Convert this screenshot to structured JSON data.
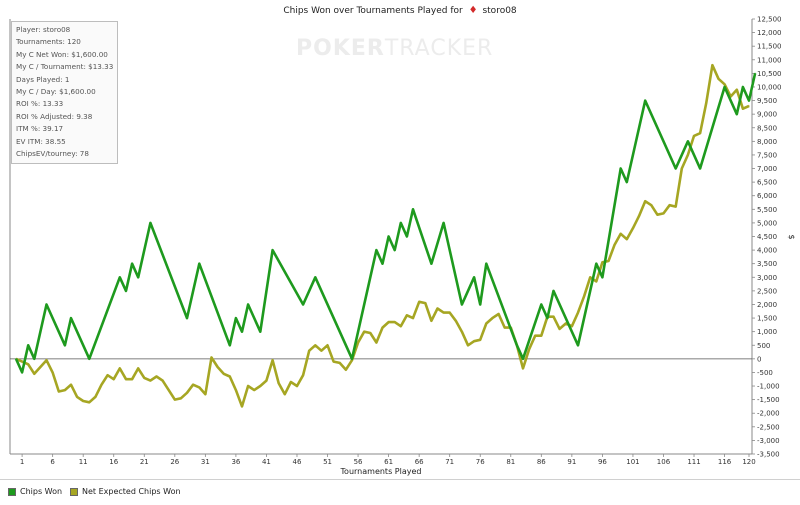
{
  "title": {
    "text": "Chips Won over Tournaments Played for",
    "suit_icon": "diamond-suit-icon",
    "suit_glyph": "♦",
    "player": "storo08"
  },
  "watermark": {
    "text_bold": "POKER",
    "text_light": "TRACKER"
  },
  "stats": [
    "Player: storo08",
    "Tournaments: 120",
    "My C Net Won: $1,600.00",
    "My C / Tournament: $13.33",
    "Days Played: 1",
    "My C / Day: $1,600.00",
    "ROI %: 13.33",
    "ROI % Adjusted: 9.38",
    "ITM %: 39.17",
    "EV ITM: 38.55",
    "ChipsEV/tourney: 78"
  ],
  "legend": [
    {
      "label": "Chips Won",
      "color": "#1e9a1e"
    },
    {
      "label": "Net Expected Chips Won",
      "color": "#a6a623"
    }
  ],
  "chart_data": {
    "type": "line",
    "title": "Chips Won over Tournaments Played for storo08",
    "xlabel": "Tournaments Played",
    "ylabel": "$",
    "xlim": [
      0,
      120
    ],
    "ylim": [
      -3500,
      12500
    ],
    "x_ticks": [
      1,
      6,
      11,
      16,
      21,
      26,
      31,
      36,
      41,
      46,
      51,
      56,
      61,
      66,
      71,
      76,
      81,
      86,
      91,
      96,
      101,
      106,
      111,
      116,
      120
    ],
    "y_ticks": [
      -3500,
      -3000,
      -2500,
      -2000,
      -1500,
      -1000,
      -500,
      0,
      500,
      1000,
      1500,
      2000,
      2500,
      3000,
      3500,
      4000,
      4500,
      5000,
      5500,
      6000,
      6500,
      7000,
      7500,
      8000,
      8500,
      9000,
      9500,
      10000,
      10500,
      11000,
      11500,
      12000,
      12500
    ],
    "y_tick_labels": [
      "-3,500",
      "-3,000",
      "-2,500",
      "-2,000",
      "-1,500",
      "-1,000",
      "-500",
      "0",
      "500",
      "1,000",
      "1,500",
      "2,000",
      "2,500",
      "3,000",
      "3,500",
      "4,000",
      "4,500",
      "5,000",
      "5,500",
      "6,000",
      "6,500",
      "7,000",
      "7,500",
      "8,000",
      "8,500",
      "9,000",
      "9,500",
      "10,000",
      "10,500",
      "11,000",
      "11,500",
      "12,000",
      "12,500"
    ],
    "grid": false,
    "zero_line": true,
    "legend_position": "bottom",
    "series": [
      {
        "name": "Chips Won",
        "color": "#1e9a1e",
        "points": [
          [
            0,
            0
          ],
          [
            1,
            -500
          ],
          [
            2,
            500
          ],
          [
            3,
            0
          ],
          [
            5,
            2000
          ],
          [
            8,
            500
          ],
          [
            9,
            1500
          ],
          [
            12,
            0
          ],
          [
            17,
            3000
          ],
          [
            18,
            2500
          ],
          [
            19,
            3500
          ],
          [
            20,
            3000
          ],
          [
            22,
            5000
          ],
          [
            28,
            1500
          ],
          [
            30,
            3500
          ],
          [
            35,
            500
          ],
          [
            36,
            1500
          ],
          [
            37,
            1000
          ],
          [
            38,
            2000
          ],
          [
            40,
            1000
          ],
          [
            42,
            4000
          ],
          [
            47,
            2000
          ],
          [
            49,
            3000
          ],
          [
            55,
            0
          ],
          [
            59,
            4000
          ],
          [
            60,
            3500
          ],
          [
            61,
            4500
          ],
          [
            62,
            4000
          ],
          [
            63,
            5000
          ],
          [
            64,
            4500
          ],
          [
            65,
            5500
          ],
          [
            68,
            3500
          ],
          [
            70,
            5000
          ],
          [
            73,
            2000
          ],
          [
            75,
            3000
          ],
          [
            76,
            2000
          ],
          [
            77,
            3500
          ],
          [
            82,
            500
          ],
          [
            83,
            0
          ],
          [
            86,
            2000
          ],
          [
            87,
            1500
          ],
          [
            88,
            2500
          ],
          [
            92,
            500
          ],
          [
            95,
            3500
          ],
          [
            96,
            3000
          ],
          [
            99,
            7000
          ],
          [
            100,
            6500
          ],
          [
            103,
            9500
          ],
          [
            108,
            7000
          ],
          [
            110,
            8000
          ],
          [
            112,
            7000
          ],
          [
            116,
            10000
          ],
          [
            118,
            9000
          ],
          [
            119,
            10000
          ],
          [
            120,
            9500
          ],
          [
            121,
            10500
          ]
        ]
      },
      {
        "name": "Net Expected Chips Won",
        "color": "#a6a623",
        "points": [
          [
            0,
            0
          ],
          [
            2,
            -200
          ],
          [
            3,
            -550
          ],
          [
            4,
            -300
          ],
          [
            5,
            -50
          ],
          [
            6,
            -500
          ],
          [
            7,
            -1200
          ],
          [
            8,
            -1150
          ],
          [
            9,
            -950
          ],
          [
            10,
            -1400
          ],
          [
            11,
            -1550
          ],
          [
            12,
            -1600
          ],
          [
            13,
            -1400
          ],
          [
            14,
            -950
          ],
          [
            15,
            -600
          ],
          [
            16,
            -750
          ],
          [
            17,
            -350
          ],
          [
            18,
            -750
          ],
          [
            19,
            -750
          ],
          [
            20,
            -350
          ],
          [
            21,
            -700
          ],
          [
            22,
            -800
          ],
          [
            23,
            -650
          ],
          [
            24,
            -800
          ],
          [
            25,
            -1150
          ],
          [
            26,
            -1500
          ],
          [
            27,
            -1450
          ],
          [
            28,
            -1250
          ],
          [
            29,
            -950
          ],
          [
            30,
            -1050
          ],
          [
            31,
            -1300
          ],
          [
            32,
            50
          ],
          [
            33,
            -300
          ],
          [
            34,
            -550
          ],
          [
            35,
            -650
          ],
          [
            36,
            -1150
          ],
          [
            37,
            -1750
          ],
          [
            38,
            -1000
          ],
          [
            39,
            -1150
          ],
          [
            40,
            -1000
          ],
          [
            41,
            -800
          ],
          [
            42,
            -50
          ],
          [
            43,
            -900
          ],
          [
            44,
            -1300
          ],
          [
            45,
            -850
          ],
          [
            46,
            -1000
          ],
          [
            47,
            -600
          ],
          [
            48,
            300
          ],
          [
            49,
            500
          ],
          [
            50,
            300
          ],
          [
            51,
            500
          ],
          [
            52,
            -100
          ],
          [
            53,
            -150
          ],
          [
            54,
            -400
          ],
          [
            55,
            -50
          ],
          [
            56,
            600
          ],
          [
            57,
            1000
          ],
          [
            58,
            950
          ],
          [
            59,
            600
          ],
          [
            60,
            1150
          ],
          [
            61,
            1350
          ],
          [
            62,
            1350
          ],
          [
            63,
            1200
          ],
          [
            64,
            1600
          ],
          [
            65,
            1500
          ],
          [
            66,
            2100
          ],
          [
            67,
            2050
          ],
          [
            68,
            1400
          ],
          [
            69,
            1850
          ],
          [
            70,
            1700
          ],
          [
            71,
            1700
          ],
          [
            72,
            1400
          ],
          [
            73,
            1000
          ],
          [
            74,
            500
          ],
          [
            75,
            650
          ],
          [
            76,
            700
          ],
          [
            77,
            1300
          ],
          [
            78,
            1500
          ],
          [
            79,
            1650
          ],
          [
            80,
            1150
          ],
          [
            81,
            1150
          ],
          [
            82,
            500
          ],
          [
            83,
            -350
          ],
          [
            84,
            350
          ],
          [
            85,
            850
          ],
          [
            86,
            850
          ],
          [
            87,
            1550
          ],
          [
            88,
            1550
          ],
          [
            89,
            1100
          ],
          [
            90,
            1300
          ],
          [
            91,
            1200
          ],
          [
            92,
            1700
          ],
          [
            93,
            2300
          ],
          [
            94,
            3000
          ],
          [
            95,
            2850
          ],
          [
            96,
            3550
          ],
          [
            97,
            3600
          ],
          [
            98,
            4200
          ],
          [
            99,
            4600
          ],
          [
            100,
            4400
          ],
          [
            101,
            4800
          ],
          [
            102,
            5250
          ],
          [
            103,
            5800
          ],
          [
            104,
            5650
          ],
          [
            105,
            5300
          ],
          [
            106,
            5350
          ],
          [
            107,
            5650
          ],
          [
            108,
            5600
          ],
          [
            109,
            7000
          ],
          [
            110,
            7500
          ],
          [
            111,
            8200
          ],
          [
            112,
            8300
          ],
          [
            113,
            9400
          ],
          [
            114,
            10800
          ],
          [
            115,
            10300
          ],
          [
            116,
            10100
          ],
          [
            117,
            9650
          ],
          [
            118,
            9900
          ],
          [
            119,
            9200
          ],
          [
            120,
            9300
          ]
        ]
      }
    ]
  }
}
